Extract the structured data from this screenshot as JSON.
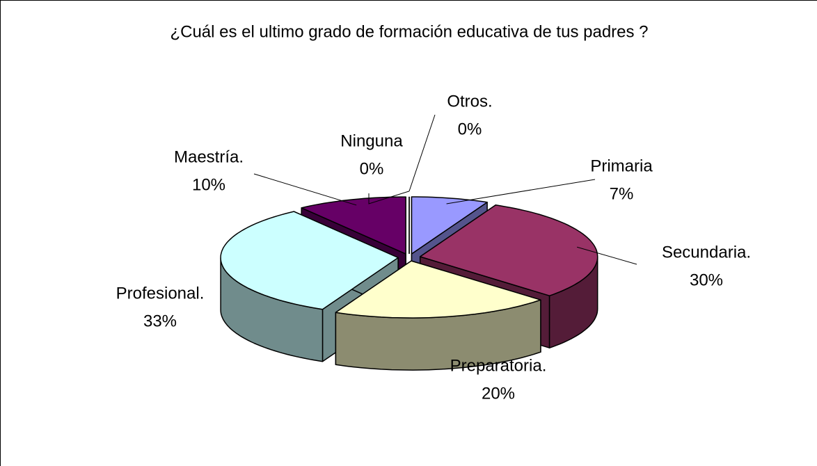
{
  "chart_data": {
    "type": "pie3d",
    "title": "¿Cuál es el ultimo grado de formación educativa de tus padres ?",
    "categories": [
      "Primaria",
      "Secundaria.",
      "Preparatoria.",
      "Profesional.",
      "Maestría.",
      "Ninguna",
      "Otros."
    ],
    "values": [
      7,
      30,
      20,
      33,
      10,
      0,
      0
    ],
    "value_labels": [
      "7%",
      "30%",
      "20%",
      "33%",
      "10%",
      "0%",
      "0%"
    ],
    "colors": [
      "#9999ff",
      "#993366",
      "#ffffcc",
      "#ccffff",
      "#660066",
      "#ff8080",
      "#0066cc"
    ]
  }
}
